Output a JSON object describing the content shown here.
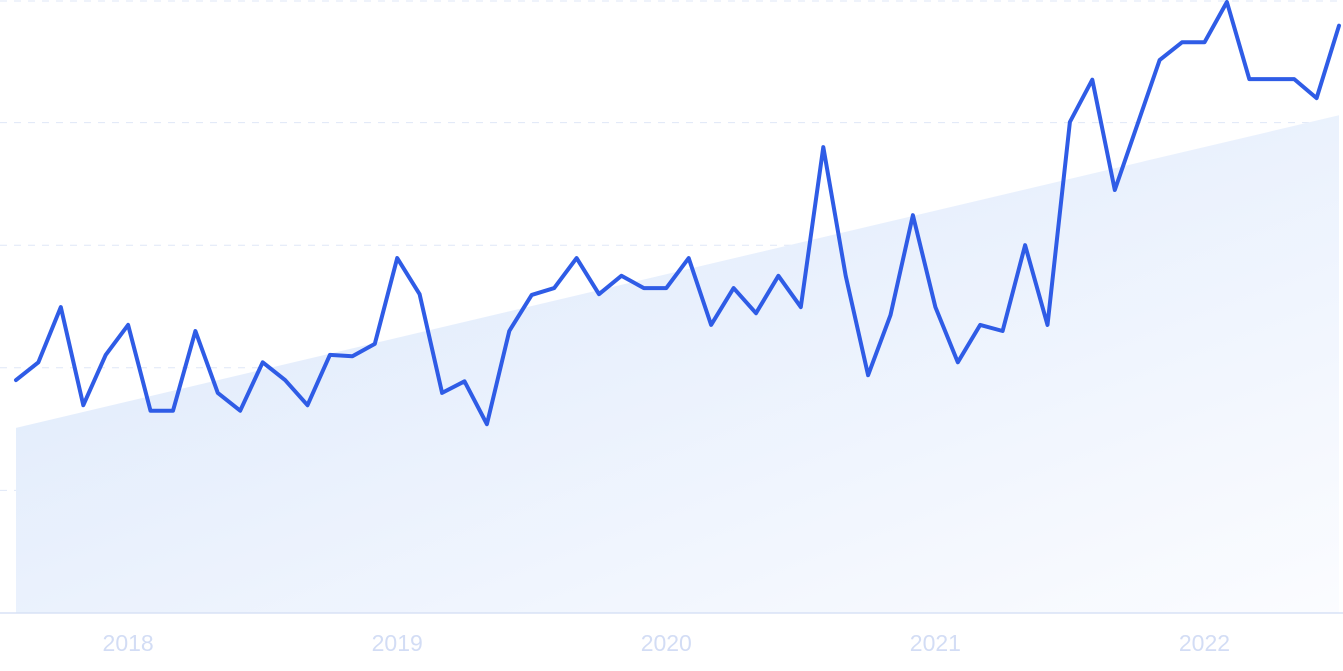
{
  "chart_data": {
    "type": "line",
    "title": "",
    "xlabel": "",
    "ylabel": "",
    "ylim": [
      0,
      100
    ],
    "grid": true,
    "x": [
      "2017-08",
      "2017-09",
      "2017-10",
      "2017-11",
      "2017-12",
      "2018-01",
      "2018-02",
      "2018-03",
      "2018-04",
      "2018-05",
      "2018-06",
      "2018-07",
      "2018-08",
      "2018-09",
      "2018-10",
      "2018-11",
      "2018-12",
      "2019-01",
      "2019-02",
      "2019-03",
      "2019-04",
      "2019-05",
      "2019-06",
      "2019-07",
      "2019-08",
      "2019-09",
      "2019-10",
      "2019-11",
      "2019-12",
      "2020-01",
      "2020-02",
      "2020-03",
      "2020-04",
      "2020-05",
      "2020-06",
      "2020-07",
      "2020-08",
      "2020-09",
      "2020-10",
      "2020-11",
      "2020-12",
      "2021-01",
      "2021-02",
      "2021-03",
      "2021-04",
      "2021-05",
      "2021-06",
      "2021-07",
      "2021-08",
      "2021-09",
      "2021-10",
      "2021-11",
      "2021-12",
      "2022-01",
      "2022-02",
      "2022-03",
      "2022-04",
      "2022-05",
      "2022-06",
      "2022-07"
    ],
    "series": [
      {
        "values": [
          38.0,
          40.9,
          49.9,
          33.9,
          42.1,
          47.0,
          33.0,
          33.0,
          46.0,
          35.9,
          33.0,
          40.9,
          38.0,
          33.9,
          42.1,
          41.9,
          43.9,
          57.9,
          52.0,
          35.9,
          37.8,
          30.8,
          46.0,
          51.9,
          53.0,
          57.9,
          52.0,
          55.0,
          53.0,
          53.0,
          57.9,
          47.0,
          53.0,
          48.9,
          55.0,
          49.9,
          76.0,
          55.0,
          38.8,
          48.6,
          64.9,
          49.9,
          40.9,
          47.0,
          46.0,
          60.0,
          47.0,
          80.1,
          87.0,
          69.0,
          79.6,
          90.2,
          93.1,
          93.1,
          100,
          87.1,
          87.1,
          87.1,
          84.0,
          95.8
        ]
      }
    ],
    "trend": {
      "start": 30.2,
      "end": 81.2
    },
    "x_ticks": [
      {
        "label": "2018",
        "x": "2018-01"
      },
      {
        "label": "2019",
        "x": "2019-01"
      },
      {
        "label": "2020",
        "x": "2020-01"
      },
      {
        "label": "2021",
        "x": "2021-01"
      },
      {
        "label": "2022",
        "x": "2022-01"
      }
    ],
    "y_gridlines": [
      20,
      40,
      60,
      80,
      100
    ],
    "colors": {
      "line": "#2f5ce6",
      "area": "#dce8fb",
      "grid": "#dfe7f7",
      "tick_label": "#d3ddf5"
    }
  }
}
